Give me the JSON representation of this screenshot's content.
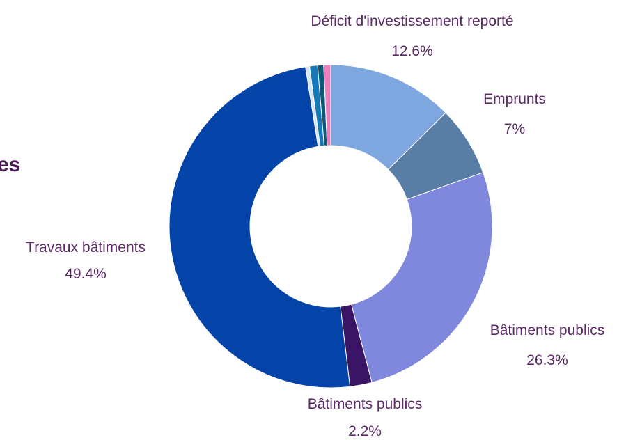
{
  "heading_fragment": "es",
  "chart_data": {
    "type": "pie",
    "donut": true,
    "slices": [
      {
        "label": "Déficit d'investissement reporté",
        "percent_label": "12.6%",
        "value": 12.6,
        "color": "#7ea6df"
      },
      {
        "label": "Emprunts",
        "percent_label": "7%",
        "value": 7.0,
        "color": "#587ea6"
      },
      {
        "label": "Bâtiments publics",
        "percent_label": "26.3%",
        "value": 26.3,
        "color": "#7f88dc"
      },
      {
        "label": "Bâtiments publics",
        "percent_label": "2.2%",
        "value": 2.2,
        "color": "#3a1565"
      },
      {
        "label": "Travaux bâtiments",
        "percent_label": "49.4%",
        "value": 49.4,
        "color": "#0444a8"
      },
      {
        "label": "",
        "percent_label": "",
        "value": 0.4,
        "color": "#d7e6f7"
      },
      {
        "label": "",
        "percent_label": "",
        "value": 0.8,
        "color": "#1579b8"
      },
      {
        "label": "",
        "percent_label": "",
        "value": 0.6,
        "color": "#0b5a7a"
      },
      {
        "label": "",
        "percent_label": "",
        "value": 0.7,
        "color": "#ee7fbf"
      }
    ]
  }
}
